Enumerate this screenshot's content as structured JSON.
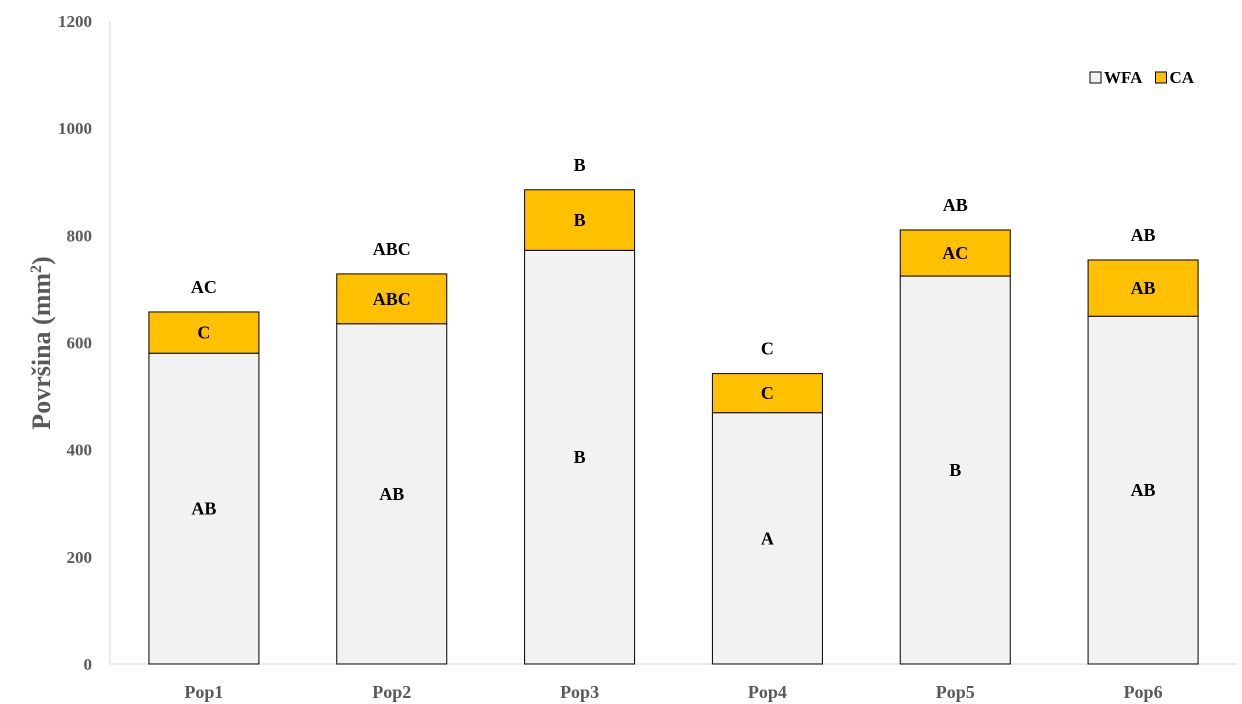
{
  "chart_data": {
    "type": "bar",
    "stacked": true,
    "categories": [
      "Pop1",
      "Pop2",
      "Pop3",
      "Pop4",
      "Pop5",
      "Pop6"
    ],
    "series": [
      {
        "name": "WFA",
        "color": "#f2f2f2",
        "values": [
          580,
          635,
          772,
          469,
          724,
          649
        ],
        "labels": [
          "AB",
          "AB",
          "B",
          "A",
          "B",
          "AB"
        ]
      },
      {
        "name": "CA",
        "color": "#ffc000",
        "values": [
          77,
          93,
          113,
          73,
          86,
          105
        ],
        "labels": [
          "C",
          "ABC",
          "B",
          "C",
          "AC",
          "AB"
        ]
      }
    ],
    "total_labels": [
      "AC",
      "ABC",
      "B",
      "C",
      "AB",
      "AB"
    ],
    "ylabel": "Površina (mm²)",
    "ylabel_base": "Površina (mm",
    "ylabel_sup": "2",
    "ylabel_end": ")",
    "xlabel": "",
    "ylim": [
      0,
      1200
    ],
    "yticks": [
      "0",
      "200",
      "400",
      "600",
      "800",
      "1000",
      "1200"
    ],
    "ytick_values": [
      0,
      200,
      400,
      600,
      800,
      1000,
      1200
    ],
    "grid": false,
    "legend": "top-right"
  }
}
